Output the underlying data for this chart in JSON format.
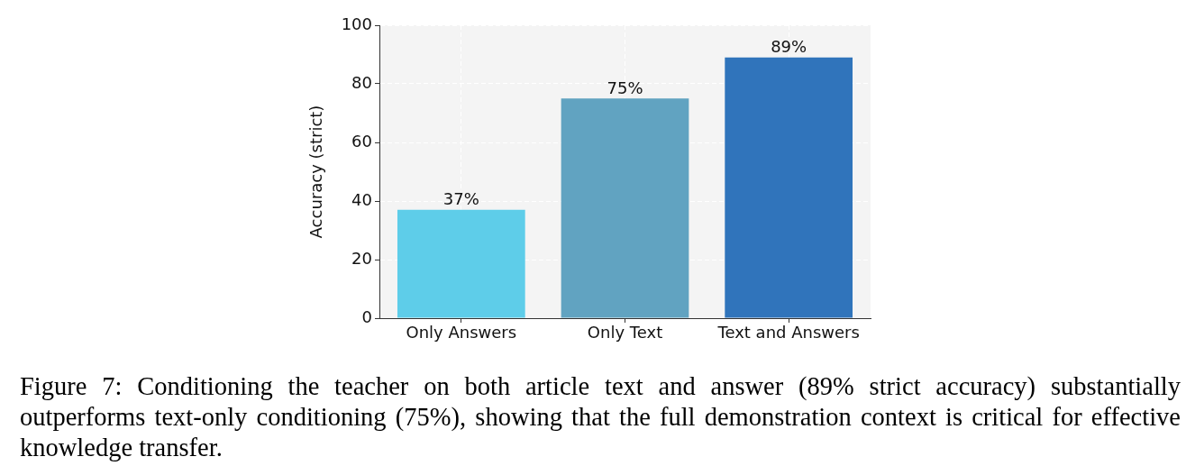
{
  "chart_data": {
    "type": "bar",
    "ylabel": "Accuracy (strict)",
    "categories": [
      "Only Answers",
      "Only Text",
      "Text and Answers"
    ],
    "values": [
      37,
      75,
      89
    ],
    "colors": [
      "#5ecde9",
      "#61a3c1",
      "#3074bb"
    ],
    "value_labels": [
      "37%",
      "75%",
      "89%"
    ],
    "ylim": [
      0,
      100
    ],
    "yticks": [
      0,
      20,
      40,
      60,
      80,
      100
    ],
    "grid": true,
    "legend": false,
    "annotations": [
      "Figure 7: Conditioning the teacher on both article text and answer (89% strict accuracy) substantially outperforms text-only conditioning (75%), showing that the full demonstration context is critical for effective knowledge transfer."
    ]
  }
}
